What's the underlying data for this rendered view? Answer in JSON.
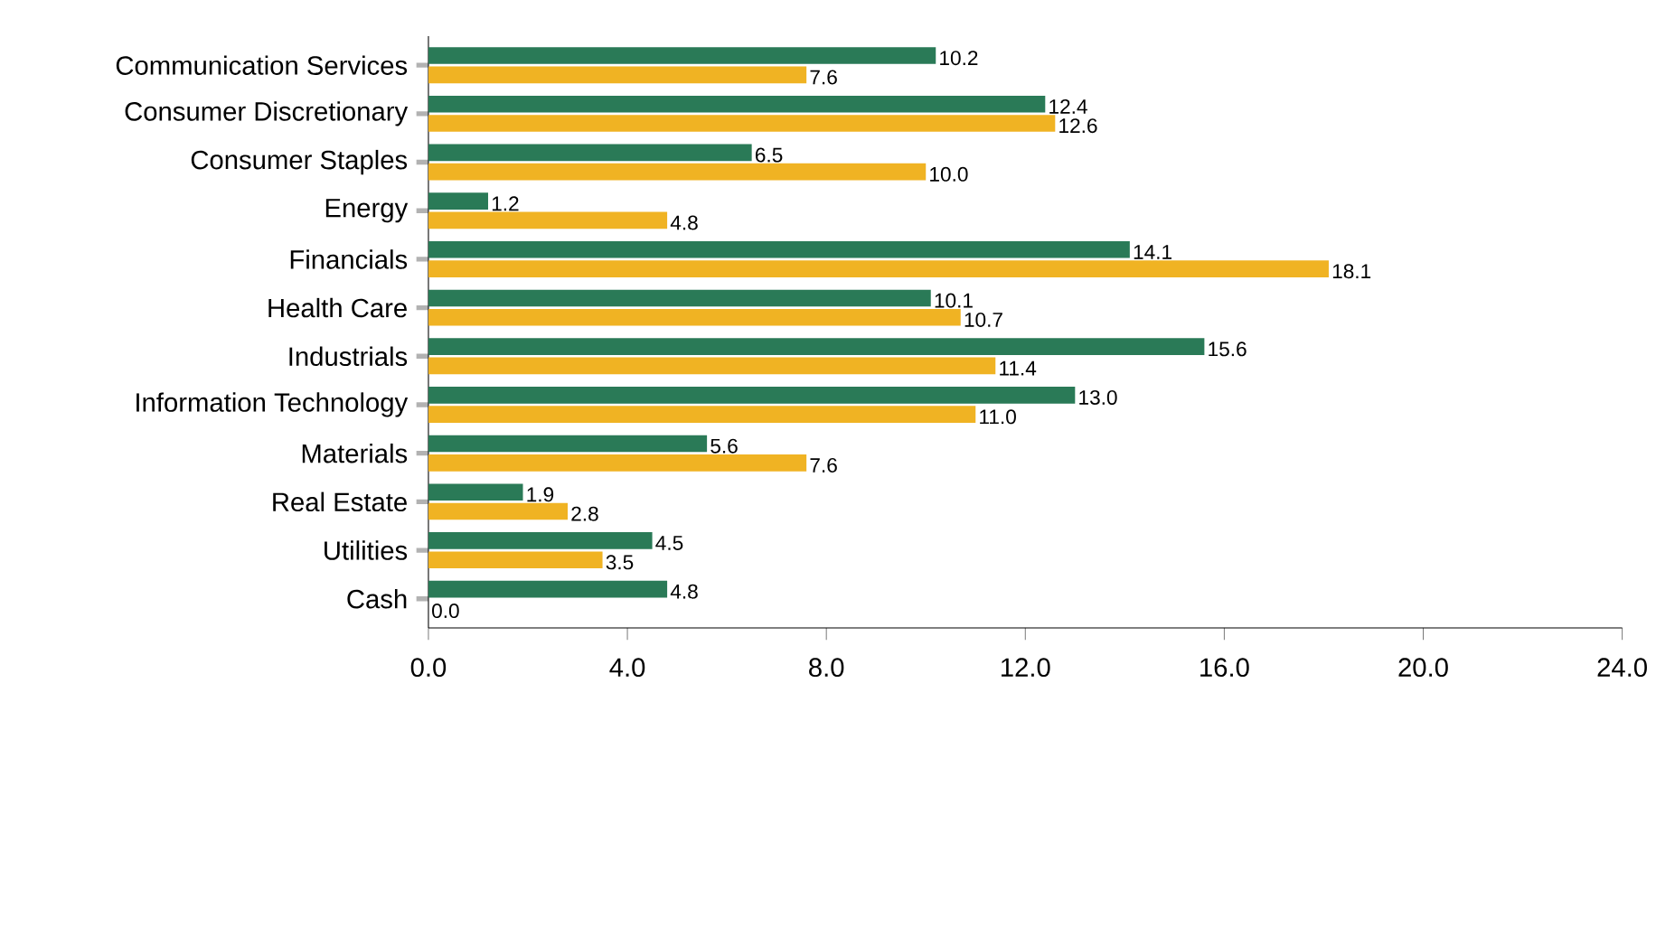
{
  "chart_data": {
    "type": "bar",
    "orientation": "horizontal",
    "categories": [
      "Communication Services",
      "Consumer Discretionary",
      "Consumer Staples",
      "Energy",
      "Financials",
      "Health Care",
      "Industrials",
      "Information Technology",
      "Materials",
      "Real Estate",
      "Utilities",
      "Cash"
    ],
    "series": [
      {
        "color": "#2a7a57",
        "values": [
          10.2,
          12.4,
          6.5,
          1.2,
          14.1,
          10.1,
          15.6,
          13.0,
          5.6,
          1.9,
          4.5,
          4.8
        ],
        "value_labels": [
          "10.2",
          "12.4",
          "6.5",
          "1.2",
          "14.1",
          "10.1",
          "15.6",
          "13.0",
          "5.6",
          "1.9",
          "4.5",
          "4.8"
        ]
      },
      {
        "color": "#f0b323",
        "values": [
          7.6,
          12.6,
          10.0,
          4.8,
          18.1,
          10.7,
          11.4,
          11.0,
          7.6,
          2.8,
          3.5,
          0.0
        ],
        "value_labels": [
          "7.6",
          "12.6",
          "10.0",
          "4.8",
          "18.1",
          "10.7",
          "11.4",
          "11.0",
          "7.6",
          "2.8",
          "3.5",
          "0.0"
        ]
      }
    ],
    "xlim": [
      0,
      24
    ],
    "xticks": [
      {
        "value": 0,
        "label": "0.0"
      },
      {
        "value": 4,
        "label": "4.0"
      },
      {
        "value": 8,
        "label": "8.0"
      },
      {
        "value": 12,
        "label": "12.0"
      },
      {
        "value": 16,
        "label": "16.0"
      },
      {
        "value": 20,
        "label": "20.0"
      },
      {
        "value": 24,
        "label": "24.0"
      }
    ]
  }
}
